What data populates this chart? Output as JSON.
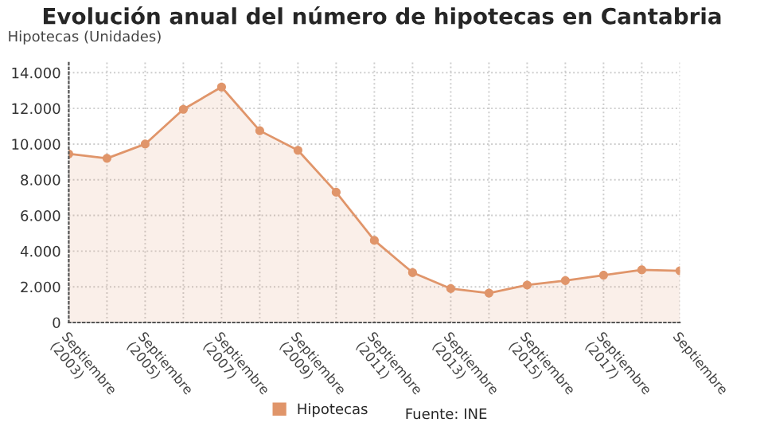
{
  "chart_data": {
    "type": "area",
    "title": "Evolución anual del número de hipotecas en Cantabria",
    "ylabel": "Hipotecas (Unidades)",
    "categories": [
      "Septiembre (2003)",
      null,
      "Septiembre (2005)",
      null,
      "Septiembre (2007)",
      null,
      "Septiembre (2009)",
      null,
      "Septiembre (2011)",
      null,
      "Septiembre (2013)",
      null,
      "Septiembre (2015)",
      null,
      "Septiembre (2017)",
      null,
      "Septiembre"
    ],
    "series": [
      {
        "name": "Hipotecas",
        "color": "#e0956a",
        "values": [
          9450,
          9200,
          10000,
          11950,
          13200,
          10750,
          9650,
          7300,
          4600,
          2800,
          1900,
          1650,
          2100,
          2350,
          2650,
          2950,
          2900
        ]
      }
    ],
    "ylim": [
      0,
      14700
    ],
    "yticks": [
      0,
      {
        "value": 2000,
        "label": "2.000"
      },
      {
        "value": 4000,
        "label": "4.000"
      },
      {
        "value": 6000,
        "label": "6.000"
      },
      {
        "value": 8000,
        "label": "8.000"
      },
      {
        "value": 10000,
        "label": "10.000"
      },
      {
        "value": 12000,
        "label": "12.000"
      },
      {
        "value": 14000,
        "label": "14.000"
      }
    ],
    "grid": true,
    "legend": "bottom",
    "marker": "circle",
    "line_style": "solid",
    "annotations": [
      "Fuente: INE"
    ]
  }
}
